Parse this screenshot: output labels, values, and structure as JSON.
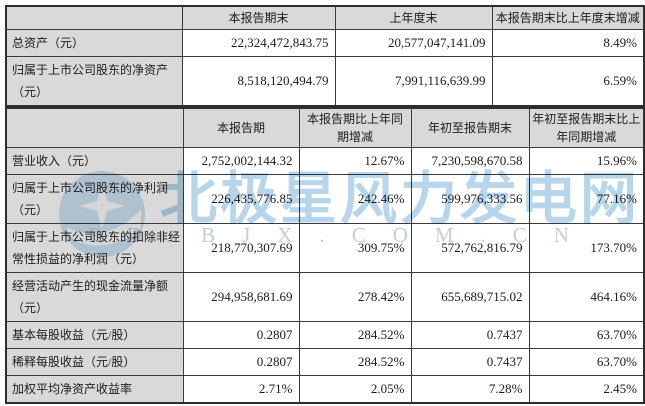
{
  "table_period_end": {
    "headers": [
      "",
      "本报告期末",
      "上年度末",
      "本报告期末比上年度末增减"
    ],
    "rows": [
      {
        "label": "总资产（元）",
        "values": [
          "22,324,472,843.75",
          "20,577,047,141.09",
          "8.49%"
        ]
      },
      {
        "label": "归属于上市公司股东的净资产（元）",
        "values": [
          "8,518,120,494.79",
          "7,991,116,639.99",
          "6.59%"
        ]
      }
    ]
  },
  "table_reporting_period": {
    "headers": [
      "",
      "本报告期",
      "本报告期比上年同期增减",
      "年初至报告期末",
      "年初至报告期末比上年同期增减"
    ],
    "rows": [
      {
        "label": "营业收入（元）",
        "values": [
          "2,752,002,144.32",
          "12.67%",
          "7,230,598,670.58",
          "15.96%"
        ]
      },
      {
        "label": "归属于上市公司股东的净利润（元）",
        "values": [
          "226,435,776.85",
          "242.46%",
          "599,976,333.56",
          "77.16%"
        ]
      },
      {
        "label": "归属于上市公司股东的扣除非经常性损益的净利润（元）",
        "values": [
          "218,770,307.69",
          "309.75%",
          "572,762,816.79",
          "173.70%"
        ]
      },
      {
        "label": "经营活动产生的现金流量净额（元）",
        "values": [
          "294,958,681.69",
          "278.42%",
          "655,689,715.02",
          "464.16%"
        ]
      },
      {
        "label": "基本每股收益（元/股）",
        "values": [
          "0.2807",
          "284.52%",
          "0.7437",
          "63.70%"
        ]
      },
      {
        "label": "稀释每股收益（元/股）",
        "values": [
          "0.2807",
          "284.52%",
          "0.7437",
          "63.70%"
        ]
      },
      {
        "label": "加权平均净资产收益率",
        "values": [
          "2.71%",
          "2.05%",
          "7.28%",
          "2.45%"
        ]
      }
    ]
  },
  "watermark": {
    "brand_text": "北极星风力发电网",
    "domain_text": "FD.BJX.COM.CN",
    "brand_color": "#b7d6ec"
  },
  "colors": {
    "cell_header_bg": "#d9d9d9",
    "table_border": "#3a3a3a",
    "page_bg": "#ffffff"
  }
}
